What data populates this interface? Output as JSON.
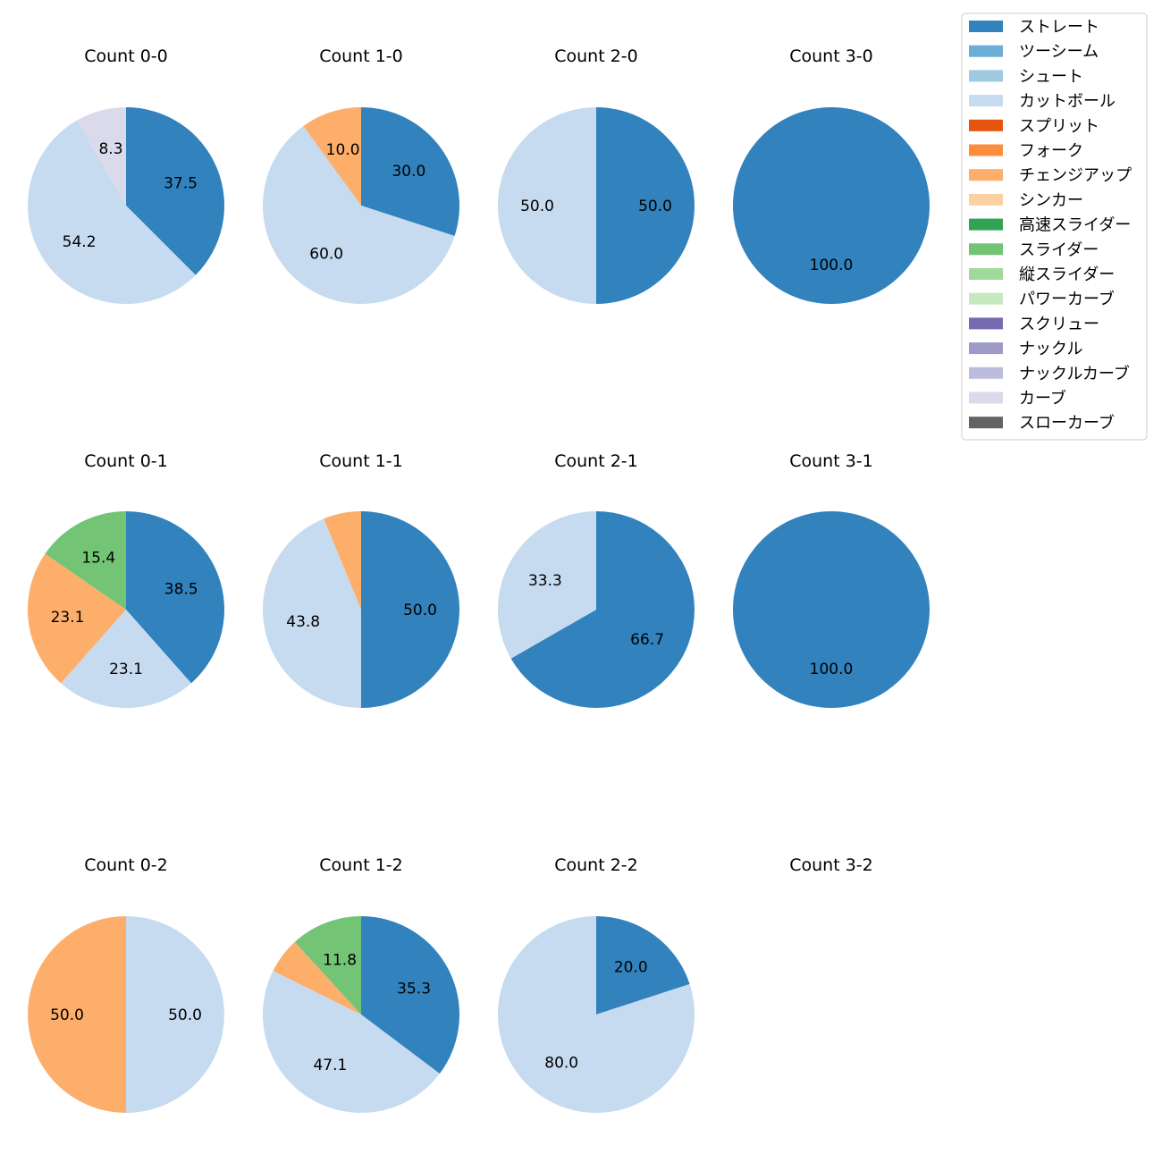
{
  "chart_data": {
    "type": "pie",
    "legend": {
      "placement": "top-right",
      "entries": [
        {
          "name": "ストレート",
          "color": "#3182bd"
        },
        {
          "name": "ツーシーム",
          "color": "#6baed6"
        },
        {
          "name": "シュート",
          "color": "#9ecae1"
        },
        {
          "name": "カットボール",
          "color": "#c6dbef"
        },
        {
          "name": "スプリット",
          "color": "#e6550d"
        },
        {
          "name": "フォーク",
          "color": "#fd8d3c"
        },
        {
          "name": "チェンジアップ",
          "color": "#fdae6b"
        },
        {
          "name": "シンカー",
          "color": "#fdd0a2"
        },
        {
          "name": "高速スライダー",
          "color": "#31a354"
        },
        {
          "name": "スライダー",
          "color": "#74c476"
        },
        {
          "name": "縦スライダー",
          "color": "#a1d99b"
        },
        {
          "name": "パワーカーブ",
          "color": "#c7e9c0"
        },
        {
          "name": "スクリュー",
          "color": "#756bb1"
        },
        {
          "name": "ナックル",
          "color": "#9e9ac8"
        },
        {
          "name": "ナックルカーブ",
          "color": "#bcbddc"
        },
        {
          "name": "カーブ",
          "color": "#dadaeb"
        },
        {
          "name": "スローカーブ",
          "color": "#636363"
        }
      ]
    },
    "charts": [
      {
        "title": "Count 0-0",
        "slices": [
          {
            "pitch": "ストレート",
            "value": 37.5,
            "label": "37.5"
          },
          {
            "pitch": "カットボール",
            "value": 54.2,
            "label": "54.2"
          },
          {
            "pitch": "カーブ",
            "value": 8.3,
            "label": "8.3"
          }
        ]
      },
      {
        "title": "Count 1-0",
        "slices": [
          {
            "pitch": "ストレート",
            "value": 30.0,
            "label": "30.0"
          },
          {
            "pitch": "カットボール",
            "value": 60.0,
            "label": "60.0"
          },
          {
            "pitch": "チェンジアップ",
            "value": 10.0,
            "label": "10.0"
          }
        ]
      },
      {
        "title": "Count 2-0",
        "slices": [
          {
            "pitch": "ストレート",
            "value": 50.0,
            "label": "50.0"
          },
          {
            "pitch": "カットボール",
            "value": 50.0,
            "label": "50.0"
          }
        ]
      },
      {
        "title": "Count 3-0",
        "slices": [
          {
            "pitch": "ストレート",
            "value": 100.0,
            "label": "100.0"
          }
        ]
      },
      {
        "title": "Count 0-1",
        "slices": [
          {
            "pitch": "ストレート",
            "value": 38.5,
            "label": "38.5"
          },
          {
            "pitch": "カットボール",
            "value": 23.1,
            "label": "23.1"
          },
          {
            "pitch": "チェンジアップ",
            "value": 23.1,
            "label": "23.1"
          },
          {
            "pitch": "スライダー",
            "value": 15.4,
            "label": "15.4"
          }
        ]
      },
      {
        "title": "Count 1-1",
        "slices": [
          {
            "pitch": "ストレート",
            "value": 50.0,
            "label": "50.0"
          },
          {
            "pitch": "カットボール",
            "value": 43.8,
            "label": "43.8"
          },
          {
            "pitch": "チェンジアップ",
            "value": 6.2,
            "label": ""
          }
        ]
      },
      {
        "title": "Count 2-1",
        "slices": [
          {
            "pitch": "ストレート",
            "value": 66.7,
            "label": "66.7"
          },
          {
            "pitch": "カットボール",
            "value": 33.3,
            "label": "33.3"
          }
        ]
      },
      {
        "title": "Count 3-1",
        "slices": [
          {
            "pitch": "ストレート",
            "value": 100.0,
            "label": "100.0"
          }
        ]
      },
      {
        "title": "Count 0-2",
        "slices": [
          {
            "pitch": "カットボール",
            "value": 50.0,
            "label": "50.0"
          },
          {
            "pitch": "チェンジアップ",
            "value": 50.0,
            "label": "50.0"
          }
        ]
      },
      {
        "title": "Count 1-2",
        "slices": [
          {
            "pitch": "ストレート",
            "value": 35.3,
            "label": "35.3"
          },
          {
            "pitch": "カットボール",
            "value": 47.1,
            "label": "47.1"
          },
          {
            "pitch": "チェンジアップ",
            "value": 5.9,
            "label": ""
          },
          {
            "pitch": "スライダー",
            "value": 11.8,
            "label": "11.8"
          }
        ]
      },
      {
        "title": "Count 2-2",
        "slices": [
          {
            "pitch": "ストレート",
            "value": 20.0,
            "label": "20.0"
          },
          {
            "pitch": "カットボール",
            "value": 80.0,
            "label": "80.0"
          }
        ]
      },
      {
        "title": "Count 3-2",
        "slices": []
      }
    ]
  }
}
